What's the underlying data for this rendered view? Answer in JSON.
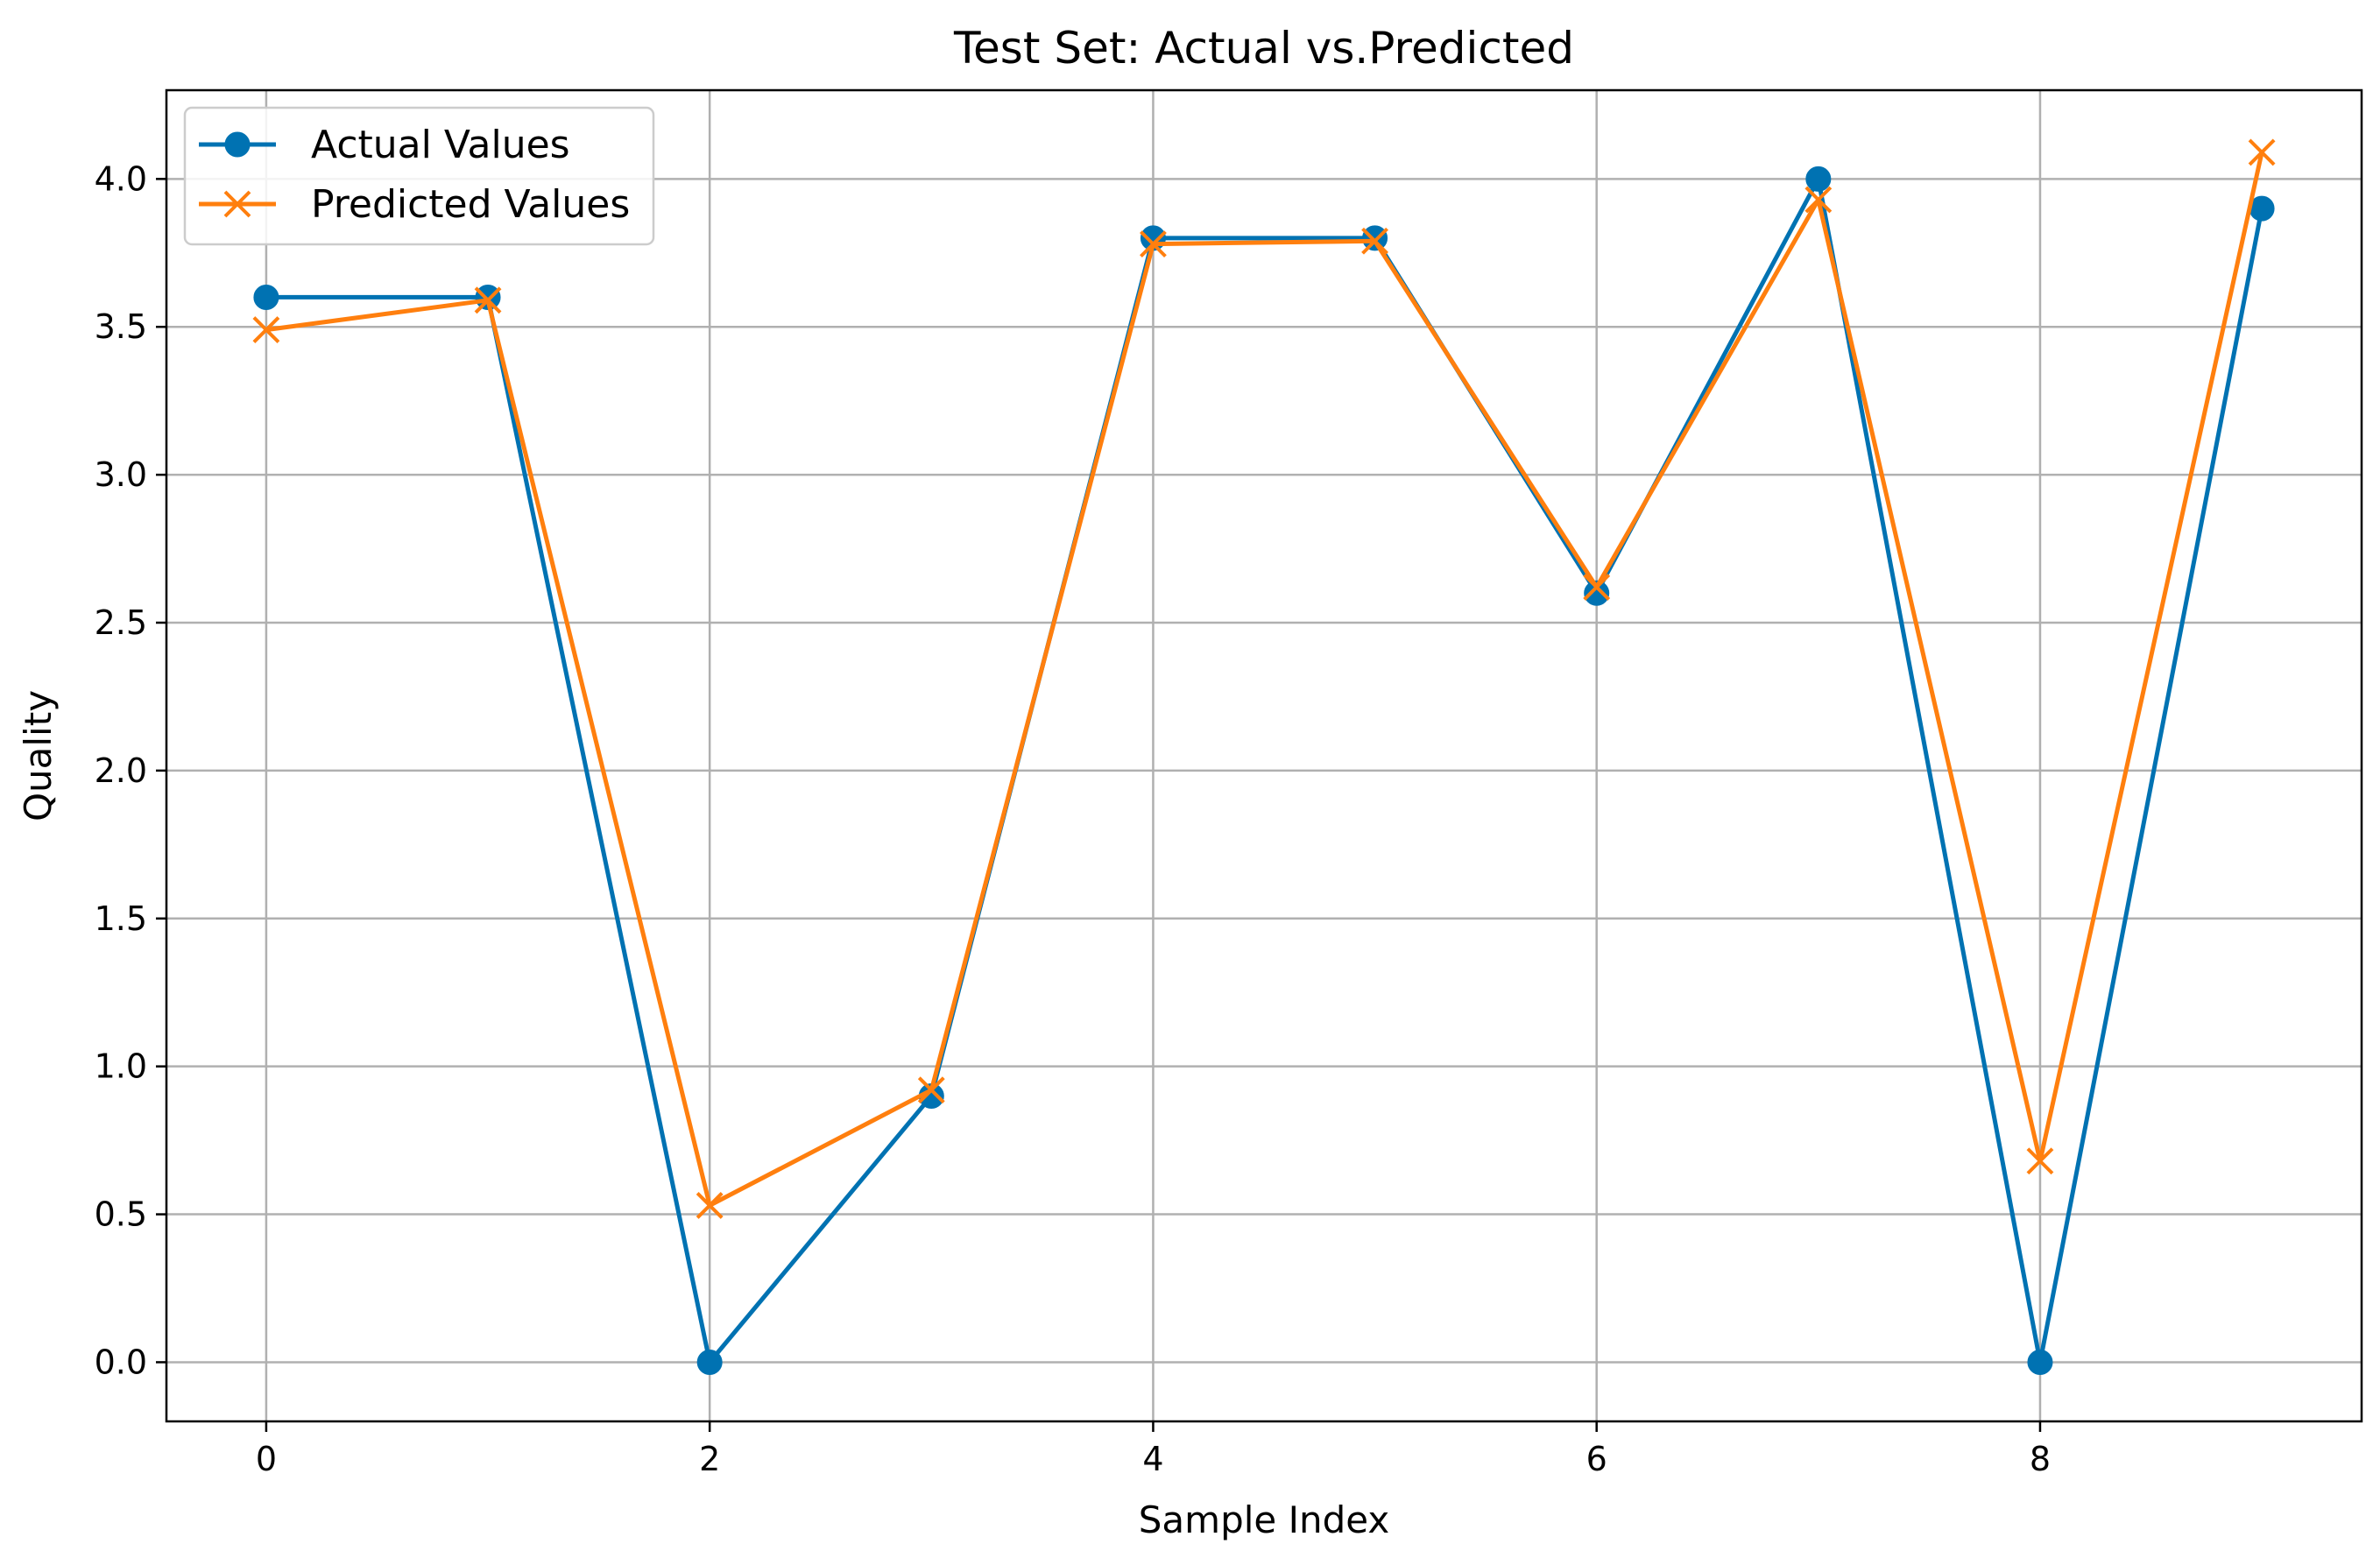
{
  "chart_data": {
    "type": "line",
    "title": "Test Set: Actual vs.Predicted",
    "xlabel": "Sample Index",
    "ylabel": "Quality",
    "xlim": [
      -0.45,
      9.45
    ],
    "ylim": [
      -0.2,
      4.3
    ],
    "xticks": [
      0,
      2,
      4,
      6,
      8
    ],
    "xtick_labels": [
      "0",
      "2",
      "4",
      "6",
      "8"
    ],
    "yticks": [
      0.0,
      0.5,
      1.0,
      1.5,
      2.0,
      2.5,
      3.0,
      3.5,
      4.0
    ],
    "ytick_labels": [
      "0.0",
      "0.5",
      "1.0",
      "1.5",
      "2.0",
      "2.5",
      "3.0",
      "3.5",
      "4.0"
    ],
    "grid": true,
    "legend_position": "top-left",
    "x": [
      0,
      1,
      2,
      3,
      4,
      5,
      6,
      7,
      8,
      9
    ],
    "series": [
      {
        "name": "Actual Values",
        "marker": "circle",
        "color": "#0072B2",
        "values": [
          3.6,
          3.6,
          0.0,
          0.9,
          3.8,
          3.8,
          2.6,
          4.0,
          0.0,
          3.9
        ]
      },
      {
        "name": "Predicted Values",
        "marker": "x",
        "color": "#FF7F0E",
        "values": [
          3.49,
          3.59,
          0.53,
          0.92,
          3.78,
          3.79,
          2.62,
          3.93,
          0.68,
          4.09
        ]
      }
    ]
  }
}
